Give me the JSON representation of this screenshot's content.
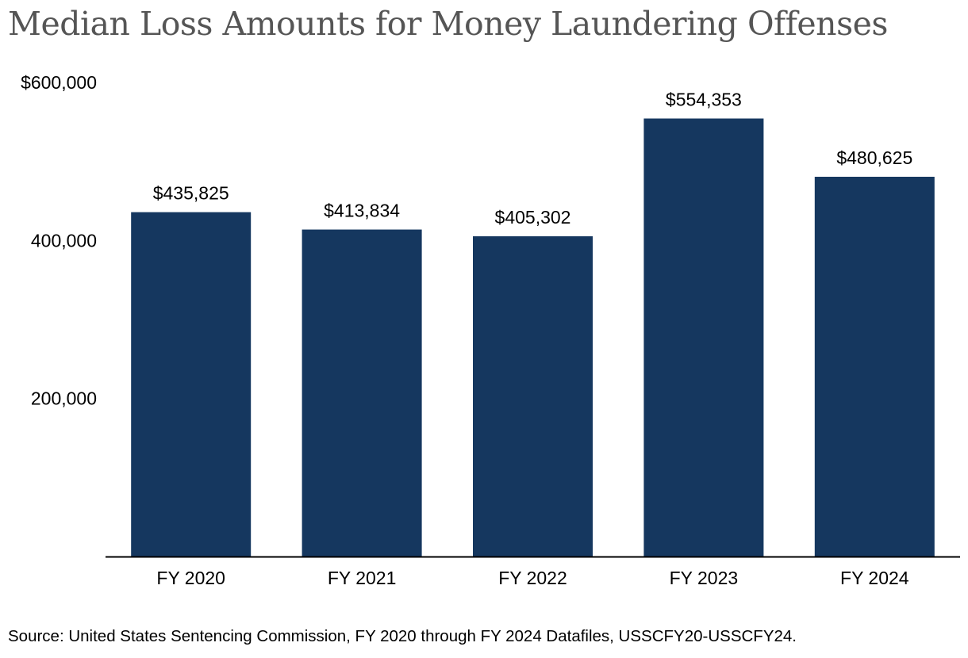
{
  "chart_data": {
    "type": "bar",
    "title": "Median Loss Amounts for Money Laundering Offenses",
    "xlabel": "",
    "ylabel": "",
    "categories": [
      "FY 2020",
      "FY 2021",
      "FY 2022",
      "FY 2023",
      "FY 2024"
    ],
    "values": [
      435825,
      413834,
      405302,
      554353,
      480625
    ],
    "data_labels": [
      "$435,825",
      "$413,834",
      "$405,302",
      "$554,353",
      "$480,625"
    ],
    "ylim": [
      0,
      600000
    ],
    "y_ticks": [
      200000,
      400000,
      600000
    ],
    "y_tick_labels": [
      "200,000",
      "400,000",
      "$600,000"
    ],
    "grid": false,
    "legend": "none",
    "bar_color": "#15375f"
  },
  "source": "Source: United States Sentencing Commission, FY 2020 through FY 2024 Datafiles, USSCFY20-USSCFY24."
}
